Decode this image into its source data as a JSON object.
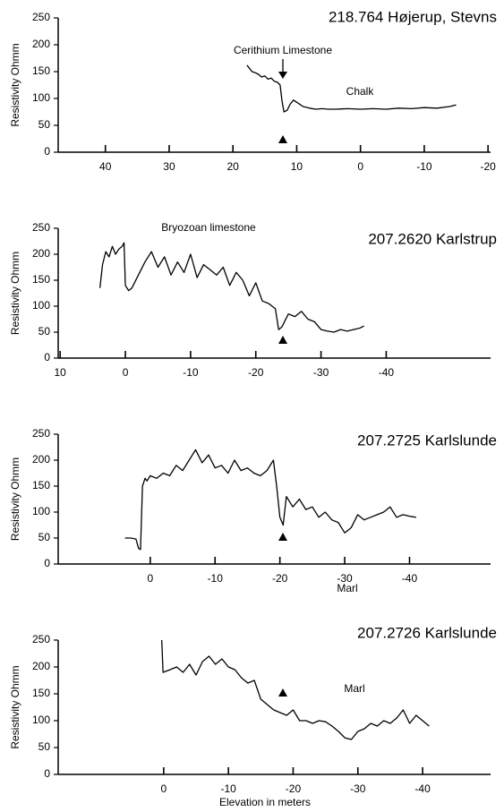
{
  "chart_data": [
    {
      "type": "line",
      "title": "218.764 Højerup, Stevns",
      "ylabel": "Resistivity Ohmm",
      "annotations": [
        "Cerithium Limestone",
        "Chalk"
      ],
      "xlim": [
        47.4,
        -20.4
      ],
      "xticks": [
        40,
        30,
        20,
        10,
        0,
        -10,
        -20
      ],
      "ylim": [
        0,
        250
      ],
      "yticks": [
        0,
        50,
        100,
        150,
        200,
        250
      ],
      "color": "#000000",
      "x": [
        17.8,
        17,
        16.5,
        16,
        15.5,
        15,
        14.5,
        14,
        13.5,
        13,
        12.6,
        12.3,
        12,
        11.5,
        11,
        10.5,
        10,
        9,
        8,
        7,
        6,
        5,
        4,
        2,
        0,
        -2,
        -4,
        -6,
        -8,
        -10,
        -12,
        -14,
        -15
      ],
      "values": [
        162,
        150,
        148,
        145,
        140,
        142,
        136,
        138,
        132,
        130,
        125,
        95,
        75,
        78,
        90,
        97,
        93,
        85,
        82,
        80,
        81,
        80,
        80,
        81,
        80,
        81,
        80,
        82,
        81,
        83,
        82,
        85,
        88
      ]
    },
    {
      "type": "line",
      "title": "207.2620 Karlstrup",
      "ylabel": "Resistivity Ohmm",
      "annotations": [
        "Bryozoan limestone"
      ],
      "xlim": [
        10.3,
        -56
      ],
      "xticks": [
        10,
        0,
        -10,
        -20,
        -30,
        -40
      ],
      "ylim": [
        0,
        250
      ],
      "yticks": [
        0,
        50,
        100,
        150,
        200,
        250
      ],
      "color": "#000000",
      "x": [
        3.9,
        3.5,
        3,
        2.5,
        2,
        1.5,
        1,
        0.5,
        0.2,
        0,
        -0.5,
        -1,
        -2,
        -3,
        -4,
        -5,
        -6,
        -7,
        -8,
        -9,
        -10,
        -11,
        -12,
        -13,
        -14,
        -15,
        -16,
        -17,
        -18,
        -19,
        -20,
        -21,
        -22,
        -23,
        -23.5,
        -24,
        -25,
        -26,
        -27,
        -28,
        -29,
        -30,
        -31,
        -32,
        -33,
        -34,
        -35,
        -36,
        -36.6
      ],
      "values": [
        135,
        180,
        205,
        195,
        215,
        200,
        210,
        215,
        222,
        140,
        130,
        135,
        160,
        185,
        205,
        175,
        195,
        160,
        185,
        165,
        200,
        155,
        180,
        170,
        160,
        175,
        140,
        165,
        150,
        120,
        145,
        110,
        105,
        95,
        55,
        60,
        85,
        80,
        90,
        75,
        70,
        55,
        52,
        50,
        55,
        52,
        55,
        58,
        62
      ]
    },
    {
      "type": "line",
      "title": "207.2725 Karlslunde",
      "ylabel": "Resistivity Ohmm",
      "annotations": [
        "Marl"
      ],
      "xlim": [
        14.2,
        -52.5
      ],
      "xticks": [
        0,
        -10,
        -20,
        -30,
        -40
      ],
      "ylim": [
        0,
        250
      ],
      "yticks": [
        0,
        50,
        100,
        150,
        200,
        250
      ],
      "color": "#000000",
      "x": [
        3.9,
        3,
        2.2,
        1.8,
        1.5,
        1.2,
        0.8,
        0.5,
        0,
        -1,
        -2,
        -3,
        -4,
        -5,
        -6,
        -7,
        -8,
        -9,
        -10,
        -11,
        -12,
        -13,
        -14,
        -15,
        -16,
        -17,
        -18,
        -19,
        -19.5,
        -20,
        -20.5,
        -21,
        -22,
        -23,
        -24,
        -25,
        -26,
        -27,
        -28,
        -29,
        -30,
        -31,
        -32,
        -33,
        -34,
        -35,
        -36,
        -37,
        -38,
        -39,
        -40,
        -41
      ],
      "values": [
        50,
        50,
        48,
        30,
        28,
        150,
        165,
        160,
        170,
        165,
        175,
        170,
        190,
        180,
        200,
        220,
        195,
        210,
        185,
        190,
        175,
        200,
        180,
        185,
        175,
        170,
        180,
        200,
        150,
        90,
        75,
        130,
        110,
        125,
        105,
        110,
        90,
        100,
        85,
        80,
        60,
        70,
        95,
        85,
        90,
        95,
        100,
        110,
        90,
        95,
        92,
        90
      ]
    },
    {
      "type": "line",
      "title": "207.2726 Karlslunde",
      "ylabel": "Resistivity Ohmm",
      "xlabel": "Elevation in meters",
      "annotations": [
        "Marl"
      ],
      "xlim": [
        16.3,
        -50.5
      ],
      "xticks": [
        0,
        -10,
        -20,
        -30,
        -40
      ],
      "ylim": [
        0,
        250
      ],
      "yticks": [
        0,
        50,
        100,
        150,
        200,
        250
      ],
      "color": "#000000",
      "x": [
        0.3,
        0.1,
        -1,
        -2,
        -3,
        -4,
        -5,
        -6,
        -7,
        -8,
        -9,
        -10,
        -11,
        -12,
        -13,
        -14,
        -15,
        -16,
        -17,
        -18,
        -19,
        -20,
        -21,
        -22,
        -23,
        -24,
        -25,
        -26,
        -27,
        -28,
        -29,
        -30,
        -31,
        -32,
        -33,
        -34,
        -35,
        -36,
        -37,
        -38,
        -39,
        -40,
        -41
      ],
      "values": [
        250,
        190,
        195,
        200,
        190,
        205,
        185,
        210,
        220,
        205,
        215,
        200,
        195,
        180,
        170,
        175,
        140,
        130,
        120,
        115,
        110,
        120,
        100,
        100,
        95,
        100,
        98,
        90,
        80,
        68,
        65,
        80,
        85,
        95,
        90,
        100,
        95,
        105,
        120,
        95,
        110,
        100,
        90
      ]
    }
  ]
}
